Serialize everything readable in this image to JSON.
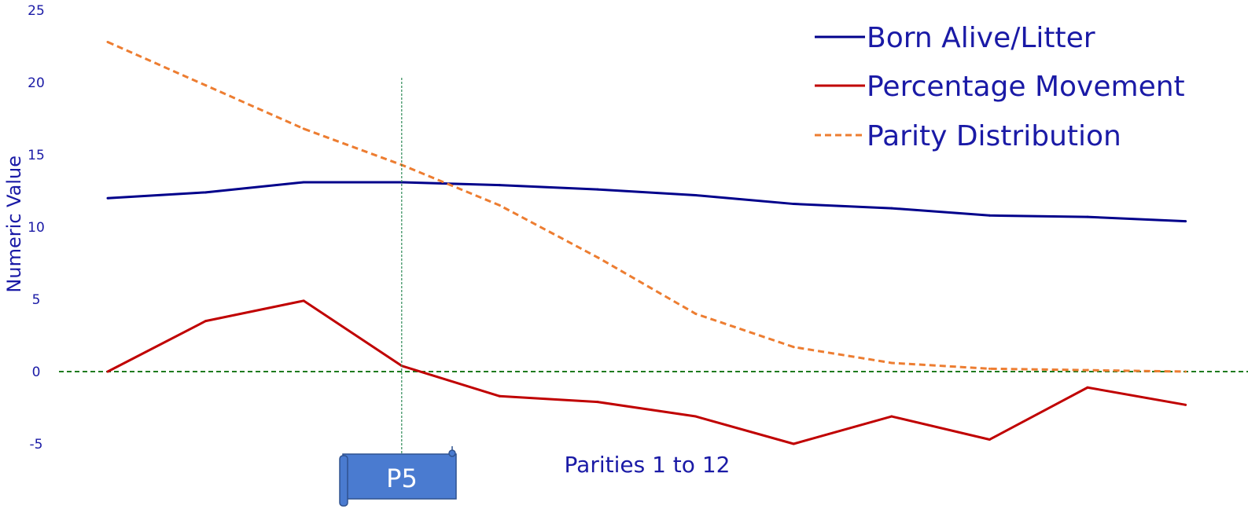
{
  "chart_data": {
    "type": "line",
    "x": [
      1,
      2,
      3,
      4,
      5,
      6,
      7,
      8,
      9,
      10,
      11,
      12
    ],
    "xlabel": "Parities 1 to 12",
    "ylabel": "Numeric Value",
    "ylim": [
      -5,
      25
    ],
    "yticks": [
      "25",
      "20",
      "15",
      "10",
      "5",
      "0",
      "-5"
    ],
    "grid": false,
    "legend_position": "top-right",
    "series": [
      {
        "name": "Born Alive/Litter",
        "color": "#00008b",
        "style": "solid",
        "values": [
          12.0,
          12.4,
          13.1,
          13.1,
          12.9,
          12.6,
          12.2,
          11.6,
          11.3,
          10.8,
          10.7,
          10.4
        ]
      },
      {
        "name": "Percentage Movement",
        "color": "#c00000",
        "style": "solid",
        "values": [
          0.0,
          3.5,
          4.9,
          0.4,
          -1.7,
          -2.1,
          -3.1,
          -5.0,
          -3.1,
          -4.7,
          -1.1,
          -2.3
        ]
      },
      {
        "name": "Parity Distribution",
        "color": "#ed7d31",
        "style": "dashed",
        "values": [
          22.8,
          19.8,
          16.8,
          14.3,
          11.5,
          7.9,
          4.0,
          1.7,
          0.6,
          0.2,
          0.1,
          0.0
        ]
      }
    ],
    "zero_line": {
      "value": 0,
      "color": "#1e7b1e",
      "style": "dashed"
    },
    "marker_line": {
      "x": 4,
      "color": "#2e8b57",
      "style": "dotted"
    },
    "marker_label": "P5",
    "marker_color": "#4a7bd0"
  }
}
